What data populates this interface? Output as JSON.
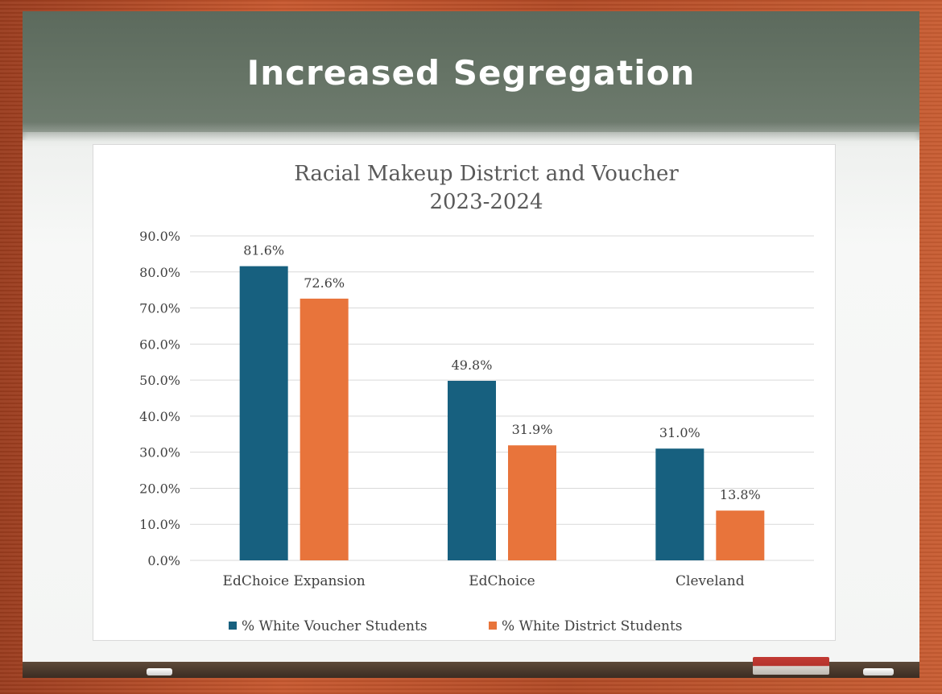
{
  "slide": {
    "title": "Increased Segregation"
  },
  "colors": {
    "voucher": "#17607f",
    "district": "#e8743b",
    "axis_text": "#404040",
    "gridline": "#d9d9d9"
  },
  "chart_data": {
    "type": "bar",
    "title": "Racial Makeup District and Voucher",
    "subtitle": "2023-2024",
    "xlabel": "",
    "ylabel": "",
    "categories": [
      "EdChoice Expansion",
      "EdChoice",
      "Cleveland"
    ],
    "series": [
      {
        "name": "% White Voucher Students",
        "values": [
          81.6,
          49.8,
          31.0
        ],
        "labels": [
          "81.6%",
          "49.8%",
          "31.0%"
        ]
      },
      {
        "name": "% White District Students",
        "values": [
          72.6,
          31.9,
          13.8
        ],
        "labels": [
          "72.6%",
          "31.9%",
          "13.8%"
        ]
      }
    ],
    "ylim": [
      0,
      90
    ],
    "yticks": [
      0,
      10,
      20,
      30,
      40,
      50,
      60,
      70,
      80,
      90
    ],
    "ytick_labels": [
      "0.0%",
      "10.0%",
      "20.0%",
      "30.0%",
      "40.0%",
      "50.0%",
      "60.0%",
      "70.0%",
      "80.0%",
      "90.0%"
    ],
    "grid": true,
    "legend_position": "bottom"
  }
}
